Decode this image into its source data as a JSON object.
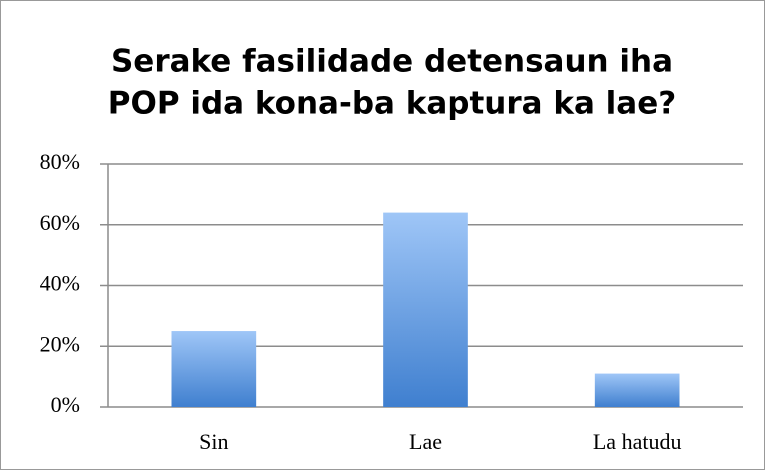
{
  "chart_data": {
    "type": "bar",
    "title": [
      "Serake fasilidade detensaun iha",
      "POP ida kona-ba kaptura ka lae?"
    ],
    "categories": [
      "Sin",
      "Lae",
      "La hatudu"
    ],
    "values": [
      25,
      64,
      11
    ],
    "color": "#3f7fcf",
    "ylim": [
      0,
      80
    ],
    "yticks": [
      {
        "value": 0,
        "label": "0%"
      },
      {
        "value": 20,
        "label": "20%"
      },
      {
        "value": 40,
        "label": "40%"
      },
      {
        "value": 60,
        "label": "60%"
      },
      {
        "value": 80,
        "label": "80%"
      }
    ],
    "grid": true
  }
}
